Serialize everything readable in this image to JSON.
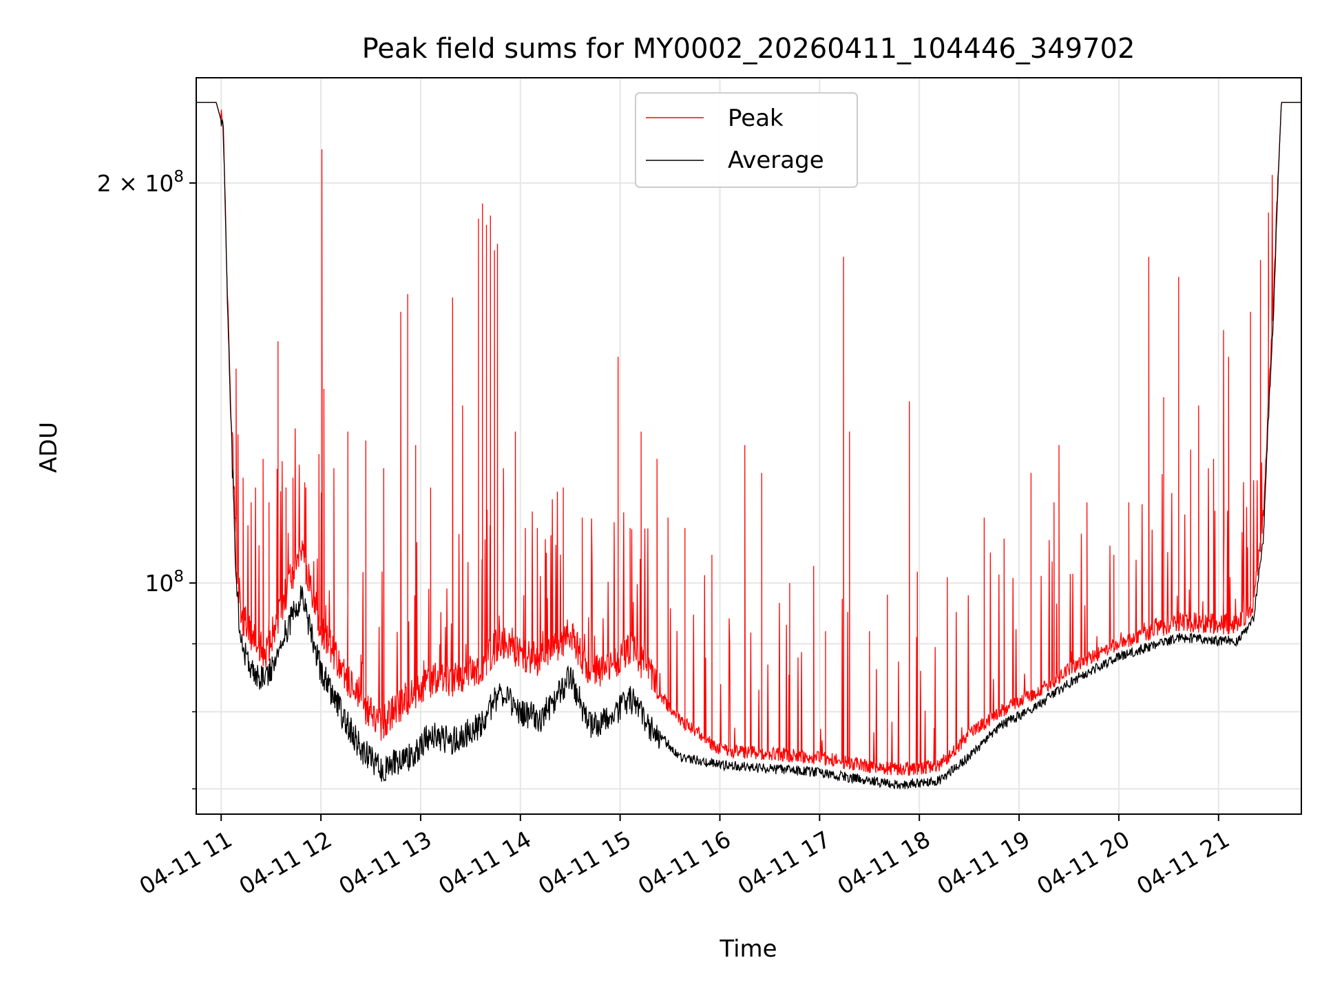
{
  "chart_data": {
    "type": "line",
    "title": "Peak field sums for MY0002_20260411_104446_349702",
    "xlabel": "Time",
    "ylabel": "ADU",
    "yscale": "log",
    "grid": true,
    "legend_position": "upper-center",
    "x_unit": "hours since 00:00 on 04-11",
    "xlim": [
      10.75,
      21.83
    ],
    "ylim": [
      67000000,
      240000000
    ],
    "x_ticks": [
      11,
      12,
      13,
      14,
      15,
      16,
      17,
      18,
      19,
      20,
      21
    ],
    "x_tick_labels": [
      "04-11 11",
      "04-11 12",
      "04-11 13",
      "04-11 14",
      "04-11 15",
      "04-11 16",
      "04-11 17",
      "04-11 18",
      "04-11 19",
      "04-11 20",
      "04-11 21"
    ],
    "y_ticks_major": [
      100000000,
      200000000
    ],
    "y_tick_labels": [
      {
        "base": "10",
        "exp": "8",
        "mult": ""
      },
      {
        "base": "10",
        "exp": "8",
        "mult": "2 × "
      }
    ],
    "y_ticks_minor": [
      70000000,
      80000000,
      90000000
    ],
    "series": [
      {
        "name": "Peak",
        "color": "#ff0000",
        "baseline": [
          [
            10.75,
            230000000
          ],
          [
            10.95,
            230000000
          ],
          [
            11.02,
            220000000
          ],
          [
            11.06,
            165000000
          ],
          [
            11.1,
            130000000
          ],
          [
            11.15,
            102000000
          ],
          [
            11.2,
            92000000
          ],
          [
            11.3,
            89000000
          ],
          [
            11.45,
            86000000
          ],
          [
            11.6,
            93000000
          ],
          [
            11.8,
            103000000
          ],
          [
            12.0,
            90000000
          ],
          [
            12.2,
            84000000
          ],
          [
            12.4,
            79000000
          ],
          [
            12.6,
            76000000
          ],
          [
            12.9,
            80000000
          ],
          [
            13.1,
            82000000
          ],
          [
            13.3,
            82000000
          ],
          [
            13.6,
            84000000
          ],
          [
            13.8,
            88000000
          ],
          [
            14.0,
            86000000
          ],
          [
            14.2,
            85000000
          ],
          [
            14.5,
            89000000
          ],
          [
            14.7,
            83000000
          ],
          [
            14.9,
            84000000
          ],
          [
            15.1,
            87000000
          ],
          [
            15.3,
            83000000
          ],
          [
            15.6,
            78000000
          ],
          [
            16.0,
            74000000
          ],
          [
            16.5,
            73500000
          ],
          [
            17.0,
            73000000
          ],
          [
            17.5,
            72000000
          ],
          [
            17.8,
            71500000
          ],
          [
            18.2,
            72000000
          ],
          [
            18.5,
            76000000
          ],
          [
            18.8,
            79000000
          ],
          [
            19.2,
            82000000
          ],
          [
            19.6,
            86000000
          ],
          [
            20.0,
            89000000
          ],
          [
            20.4,
            91000000
          ],
          [
            20.6,
            92000000
          ],
          [
            21.0,
            91500000
          ],
          [
            21.2,
            91500000
          ],
          [
            21.35,
            95000000
          ],
          [
            21.45,
            110000000
          ],
          [
            21.55,
            160000000
          ],
          [
            21.63,
            230000000
          ],
          [
            21.83,
            230000000
          ]
        ],
        "spikes": [
          [
            11.15,
            145000000
          ],
          [
            11.22,
            120000000
          ],
          [
            11.3,
            115000000
          ],
          [
            11.42,
            124000000
          ],
          [
            11.48,
            115000000
          ],
          [
            11.57,
            152000000
          ],
          [
            11.65,
            118000000
          ],
          [
            11.72,
            120000000
          ],
          [
            11.85,
            118000000
          ],
          [
            11.98,
            125000000
          ],
          [
            12.01,
            212000000
          ],
          [
            12.03,
            140000000
          ],
          [
            12.13,
            122000000
          ],
          [
            12.27,
            130000000
          ],
          [
            12.45,
            128000000
          ],
          [
            12.63,
            122000000
          ],
          [
            12.8,
            160000000
          ],
          [
            12.87,
            165000000
          ],
          [
            12.95,
            127000000
          ],
          [
            13.1,
            118000000
          ],
          [
            13.32,
            164000000
          ],
          [
            13.42,
            136000000
          ],
          [
            13.58,
            188000000
          ],
          [
            13.62,
            193000000
          ],
          [
            13.66,
            186000000
          ],
          [
            13.7,
            189000000
          ],
          [
            13.74,
            178000000
          ],
          [
            13.77,
            180000000
          ],
          [
            13.83,
            122000000
          ],
          [
            13.95,
            130000000
          ],
          [
            14.05,
            110000000
          ],
          [
            14.17,
            110000000
          ],
          [
            14.43,
            118000000
          ],
          [
            14.62,
            112000000
          ],
          [
            14.98,
            148000000
          ],
          [
            15.1,
            110000000
          ],
          [
            15.21,
            130000000
          ],
          [
            15.37,
            124000000
          ],
          [
            15.48,
            112000000
          ],
          [
            15.65,
            110000000
          ],
          [
            15.92,
            105000000
          ],
          [
            16.25,
            127000000
          ],
          [
            16.42,
            121000000
          ],
          [
            16.7,
            100000000
          ],
          [
            16.94,
            103000000
          ],
          [
            17.06,
            92000000
          ],
          [
            17.24,
            176000000
          ],
          [
            17.3,
            130000000
          ],
          [
            17.5,
            92000000
          ],
          [
            17.68,
            98000000
          ],
          [
            17.9,
            137000000
          ],
          [
            17.98,
            102000000
          ],
          [
            18.28,
            101000000
          ],
          [
            18.65,
            112000000
          ],
          [
            18.85,
            108000000
          ],
          [
            19.12,
            121000000
          ],
          [
            19.35,
            115000000
          ],
          [
            19.4,
            127000000
          ],
          [
            19.68,
            115000000
          ],
          [
            19.95,
            105000000
          ],
          [
            20.1,
            115000000
          ],
          [
            20.3,
            176000000
          ],
          [
            20.45,
            138000000
          ],
          [
            20.6,
            170000000
          ],
          [
            20.72,
            126000000
          ],
          [
            20.8,
            136000000
          ],
          [
            20.95,
            124000000
          ],
          [
            21.05,
            155000000
          ],
          [
            21.1,
            148000000
          ],
          [
            21.32,
            160000000
          ],
          [
            21.42,
            175000000
          ],
          [
            21.5,
            190000000
          ]
        ]
      },
      {
        "name": "Average",
        "color": "#000000",
        "baseline": [
          [
            10.75,
            230000000
          ],
          [
            10.95,
            230000000
          ],
          [
            11.02,
            220000000
          ],
          [
            11.06,
            165000000
          ],
          [
            11.1,
            130000000
          ],
          [
            11.15,
            100000000
          ],
          [
            11.2,
            90000000
          ],
          [
            11.3,
            86000000
          ],
          [
            11.45,
            84000000
          ],
          [
            11.6,
            90000000
          ],
          [
            11.8,
            98000000
          ],
          [
            12.0,
            86000000
          ],
          [
            12.2,
            80000000
          ],
          [
            12.4,
            75000000
          ],
          [
            12.6,
            72500000
          ],
          [
            12.9,
            74000000
          ],
          [
            13.1,
            77000000
          ],
          [
            13.3,
            76000000
          ],
          [
            13.6,
            78000000
          ],
          [
            13.8,
            83000000
          ],
          [
            14.0,
            80000000
          ],
          [
            14.2,
            79000000
          ],
          [
            14.5,
            85000000
          ],
          [
            14.7,
            78000000
          ],
          [
            14.9,
            79000000
          ],
          [
            15.1,
            82000000
          ],
          [
            15.3,
            78000000
          ],
          [
            15.6,
            74000000
          ],
          [
            16.0,
            73000000
          ],
          [
            16.5,
            72500000
          ],
          [
            17.0,
            72000000
          ],
          [
            17.5,
            71000000
          ],
          [
            17.8,
            70500000
          ],
          [
            18.2,
            71000000
          ],
          [
            18.5,
            74000000
          ],
          [
            18.8,
            78000000
          ],
          [
            19.2,
            81000000
          ],
          [
            19.6,
            85000000
          ],
          [
            20.0,
            88000000
          ],
          [
            20.4,
            90000000
          ],
          [
            20.6,
            91000000
          ],
          [
            21.0,
            90500000
          ],
          [
            21.2,
            90500000
          ],
          [
            21.35,
            94000000
          ],
          [
            21.45,
            108000000
          ],
          [
            21.55,
            158000000
          ],
          [
            21.63,
            230000000
          ],
          [
            21.83,
            230000000
          ]
        ]
      }
    ],
    "annotations": []
  }
}
